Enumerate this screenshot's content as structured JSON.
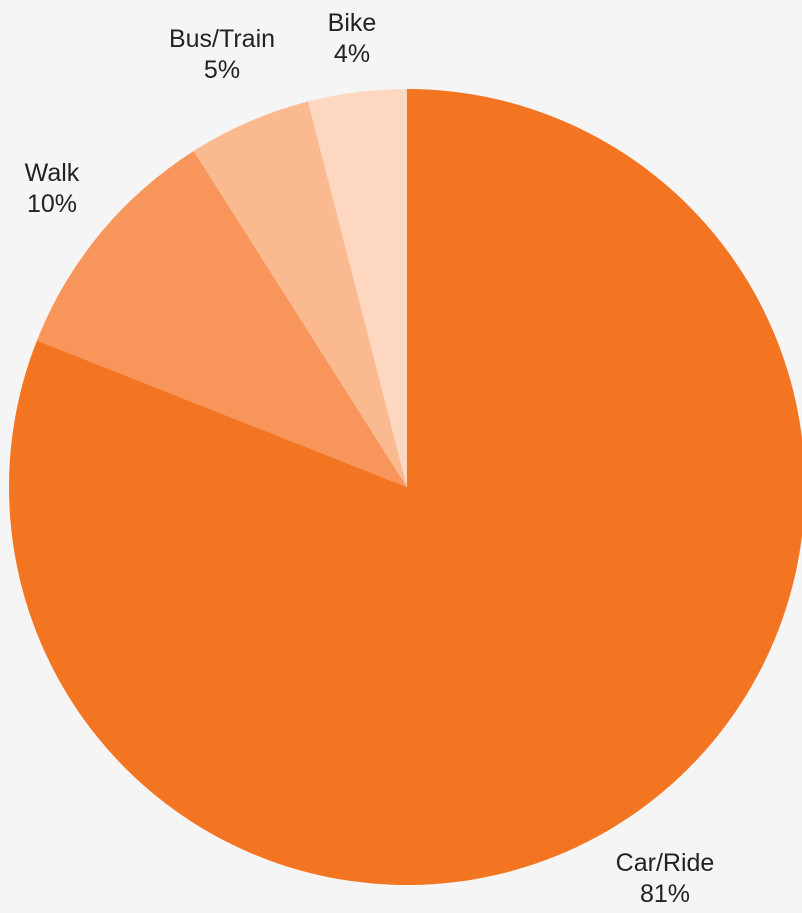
{
  "chart_data": {
    "type": "pie",
    "title": "",
    "start_angle_deg": 0,
    "direction": "clockwise",
    "slices": [
      {
        "name": "Car/Ride",
        "value": 81,
        "label": "81%",
        "color": "#f47521"
      },
      {
        "name": "Walk",
        "value": 10,
        "label": "10%",
        "color": "#f8955a"
      },
      {
        "name": "Bus/Train",
        "value": 5,
        "label": "5%",
        "color": "#fbb98f"
      },
      {
        "name": "Bike",
        "value": 4,
        "label": "4%",
        "color": "#fdd7c0"
      }
    ]
  }
}
